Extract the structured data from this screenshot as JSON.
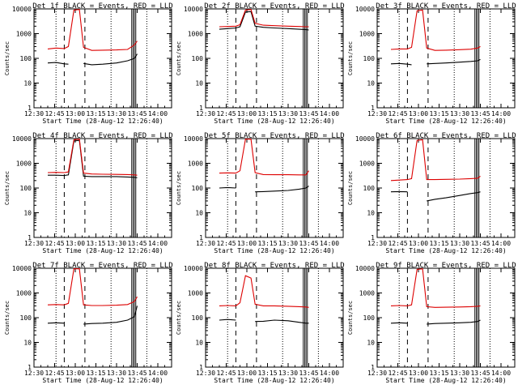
{
  "x_ticks": [
    "12:30",
    "12:45",
    "13:00",
    "13:15",
    "13:30",
    "13:45",
    "14:00"
  ],
  "y_ticks": [
    "1",
    "10",
    "100",
    "1000",
    "10000"
  ],
  "ylabel": "Counts/sec",
  "xlabel": "Start Time (28-Aug-12 12:26:40)",
  "colors": {
    "events": "#000000",
    "lld": "#dd0000"
  },
  "chart_data": [
    {
      "type": "line",
      "title": "Det 1f BLACK = Events, RED = LLD",
      "xlabel": "Start Time (28-Aug-12 12:26:40)",
      "ylabel": "Counts/sec",
      "log_y": true,
      "ylim": [
        1,
        10000
      ],
      "x": [
        "12:40",
        "12:46",
        "12:52",
        "12:55",
        "12:59",
        "13:03",
        "13:06",
        "13:12",
        "13:20",
        "13:30",
        "13:38",
        "13:43",
        "13:45"
      ],
      "series": [
        {
          "name": "Events",
          "values": [
            65,
            68,
            60,
            58,
            null,
            null,
            62,
            55,
            58,
            65,
            80,
            100,
            150
          ]
        },
        {
          "name": "LLD",
          "values": [
            240,
            260,
            250,
            300,
            9000,
            9500,
            280,
            210,
            215,
            220,
            230,
            350,
            500
          ]
        }
      ]
    },
    {
      "type": "line",
      "title": "Det 2f BLACK = Events, RED = LLD",
      "xlabel": "Start Time (28-Aug-12 12:26:40)",
      "ylabel": "Counts/sec",
      "log_y": true,
      "ylim": [
        1,
        10000
      ],
      "x": [
        "12:40",
        "12:46",
        "12:52",
        "12:55",
        "12:59",
        "13:03",
        "13:06",
        "13:12",
        "13:20",
        "13:30",
        "13:38",
        "13:43",
        "13:45"
      ],
      "series": [
        {
          "name": "Events",
          "values": [
            1500,
            1600,
            1700,
            1900,
            7500,
            7800,
            2000,
            1800,
            1700,
            1600,
            1500,
            1450,
            1400
          ]
        },
        {
          "name": "LLD",
          "values": [
            1900,
            1950,
            2000,
            2300,
            9000,
            9500,
            2600,
            2200,
            2100,
            2000,
            1950,
            1900,
            1900
          ]
        }
      ]
    },
    {
      "type": "line",
      "title": "Det 3f BLACK = Events, RED = LLD",
      "xlabel": "Start Time (28-Aug-12 12:26:40)",
      "ylabel": "Counts/sec",
      "log_y": true,
      "ylim": [
        1,
        10000
      ],
      "x": [
        "12:40",
        "12:46",
        "12:52",
        "12:55",
        "12:59",
        "13:03",
        "13:06",
        "13:12",
        "13:20",
        "13:30",
        "13:38",
        "13:43",
        "13:45"
      ],
      "series": [
        {
          "name": "Events",
          "values": [
            60,
            62,
            58,
            55,
            null,
            null,
            60,
            62,
            65,
            70,
            75,
            80,
            90
          ]
        },
        {
          "name": "LLD",
          "values": [
            230,
            240,
            240,
            280,
            8500,
            9000,
            260,
            210,
            215,
            225,
            235,
            260,
            300
          ]
        }
      ]
    },
    {
      "type": "line",
      "title": "Det 4f BLACK = Events, RED = LLD",
      "xlabel": "Start Time (28-Aug-12 12:26:40)",
      "ylabel": "Counts/sec",
      "log_y": true,
      "ylim": [
        1,
        10000
      ],
      "x": [
        "12:40",
        "12:46",
        "12:52",
        "12:55",
        "12:59",
        "13:03",
        "13:06",
        "13:12",
        "13:20",
        "13:30",
        "13:38",
        "13:43",
        "13:45"
      ],
      "series": [
        {
          "name": "Events",
          "values": [
            330,
            330,
            320,
            340,
            8000,
            8500,
            300,
            290,
            290,
            290,
            280,
            270,
            260
          ]
        },
        {
          "name": "LLD",
          "values": [
            420,
            430,
            420,
            450,
            9000,
            9500,
            400,
            370,
            360,
            355,
            350,
            340,
            330
          ]
        }
      ]
    },
    {
      "type": "line",
      "title": "Det 5f BLACK = Events, RED = LLD",
      "xlabel": "Start Time (28-Aug-12 12:26:40)",
      "ylabel": "Counts/sec",
      "log_y": true,
      "ylim": [
        1,
        10000
      ],
      "x": [
        "12:40",
        "12:46",
        "12:52",
        "12:55",
        "12:59",
        "13:03",
        "13:06",
        "13:12",
        "13:20",
        "13:30",
        "13:38",
        "13:43",
        "13:45"
      ],
      "series": [
        {
          "name": "Events",
          "values": [
            100,
            105,
            100,
            null,
            null,
            null,
            70,
            72,
            75,
            80,
            90,
            100,
            120
          ]
        },
        {
          "name": "LLD",
          "values": [
            400,
            410,
            400,
            500,
            9500,
            9500,
            420,
            350,
            345,
            345,
            340,
            340,
            500
          ]
        }
      ]
    },
    {
      "type": "line",
      "title": "Det 6f BLACK = Events, RED = LLD",
      "xlabel": "Start Time (28-Aug-12 12:26:40)",
      "ylabel": "Counts/sec",
      "log_y": true,
      "ylim": [
        1,
        10000
      ],
      "x": [
        "12:40",
        "12:46",
        "12:52",
        "12:55",
        "12:59",
        "13:03",
        "13:06",
        "13:12",
        "13:20",
        "13:30",
        "13:38",
        "13:43",
        "13:45"
      ],
      "series": [
        {
          "name": "Events",
          "values": [
            70,
            72,
            70,
            null,
            null,
            null,
            30,
            35,
            40,
            50,
            60,
            65,
            70
          ]
        },
        {
          "name": "LLD",
          "values": [
            200,
            210,
            220,
            240,
            8500,
            9000,
            220,
            220,
            225,
            230,
            240,
            250,
            300
          ]
        }
      ]
    },
    {
      "type": "line",
      "title": "Det 7f BLACK = Events, RED = LLD",
      "xlabel": "Start Time (28-Aug-12 12:26:40)",
      "ylabel": "Counts/sec",
      "log_y": true,
      "ylim": [
        1,
        10000
      ],
      "x": [
        "12:40",
        "12:46",
        "12:52",
        "12:55",
        "12:59",
        "13:03",
        "13:06",
        "13:12",
        "13:20",
        "13:30",
        "13:38",
        "13:43",
        "13:45"
      ],
      "series": [
        {
          "name": "Events",
          "values": [
            60,
            62,
            60,
            null,
            null,
            null,
            55,
            58,
            60,
            65,
            80,
            110,
            300
          ]
        },
        {
          "name": "LLD",
          "values": [
            330,
            340,
            330,
            380,
            9500,
            9500,
            330,
            310,
            310,
            320,
            340,
            450,
            700
          ]
        }
      ]
    },
    {
      "type": "line",
      "title": "Det 8f BLACK = Events, RED = LLD",
      "xlabel": "Start Time (28-Aug-12 12:26:40)",
      "ylabel": "Counts/sec",
      "log_y": true,
      "ylim": [
        1,
        10000
      ],
      "x": [
        "12:40",
        "12:46",
        "12:52",
        "12:55",
        "12:59",
        "13:03",
        "13:06",
        "13:12",
        "13:20",
        "13:30",
        "13:38",
        "13:43",
        "13:45"
      ],
      "series": [
        {
          "name": "Events",
          "values": [
            80,
            85,
            80,
            null,
            null,
            null,
            70,
            72,
            80,
            75,
            65,
            60,
            60
          ]
        },
        {
          "name": "LLD",
          "values": [
            300,
            310,
            300,
            400,
            5000,
            4000,
            350,
            300,
            300,
            290,
            280,
            270,
            260
          ]
        }
      ]
    },
    {
      "type": "line",
      "title": "Det 9f BLACK = Events, RED = LLD",
      "xlabel": "Start Time (28-Aug-12 12:26:40)",
      "ylabel": "Counts/sec",
      "log_y": true,
      "ylim": [
        1,
        10000
      ],
      "x": [
        "12:40",
        "12:46",
        "12:52",
        "12:55",
        "12:59",
        "13:03",
        "13:06",
        "13:12",
        "13:20",
        "13:30",
        "13:38",
        "13:43",
        "13:45"
      ],
      "series": [
        {
          "name": "Events",
          "values": [
            60,
            62,
            60,
            null,
            null,
            null,
            55,
            58,
            60,
            62,
            65,
            70,
            80
          ]
        },
        {
          "name": "LLD",
          "values": [
            300,
            310,
            300,
            330,
            9000,
            9500,
            280,
            260,
            265,
            270,
            280,
            290,
            300
          ]
        }
      ]
    }
  ]
}
